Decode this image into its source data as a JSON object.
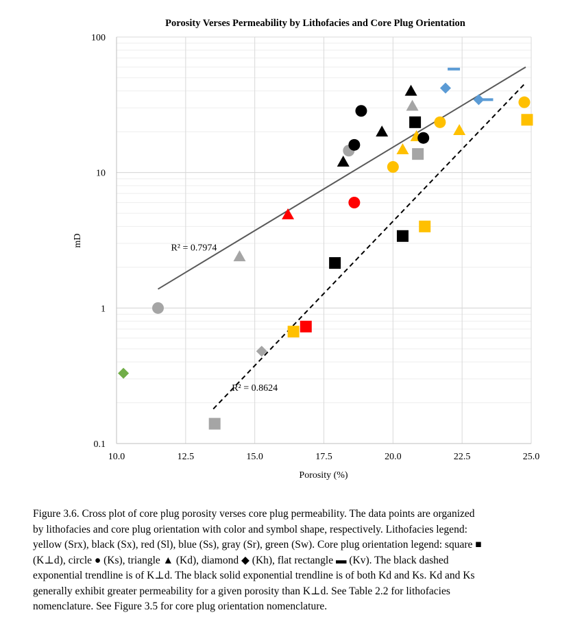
{
  "chart_data": {
    "type": "scatter",
    "title": "Porosity Verses Permeability by Lithofacies and Core Plug Orientation",
    "xlabel": "Porosity (%)",
    "ylabel": "mD",
    "xlim": [
      10.0,
      25.0
    ],
    "ylim": [
      0.1,
      100
    ],
    "y_scale": "log",
    "grid": true,
    "legend": "none",
    "x_ticks": [
      "10.0",
      "12.5",
      "15.0",
      "17.5",
      "20.0",
      "22.5",
      "25.0"
    ],
    "x_tick_values": [
      10.0,
      12.5,
      15.0,
      17.5,
      20.0,
      22.5,
      25.0
    ],
    "y_ticks": [
      "0.1",
      "1",
      "10",
      "100"
    ],
    "y_tick_values": [
      0.1,
      1,
      10,
      100
    ],
    "colors": {
      "yellow": "#ffc000",
      "black": "#000000",
      "red": "#ff0000",
      "blue": "#5b9bd5",
      "gray": "#a5a5a5",
      "green": "#70ad47"
    },
    "points": [
      {
        "x": 10.25,
        "y": 0.33,
        "shape": "diamond",
        "color": "green"
      },
      {
        "x": 11.5,
        "y": 1.0,
        "shape": "circle",
        "color": "gray"
      },
      {
        "x": 13.55,
        "y": 0.14,
        "shape": "square",
        "color": "gray"
      },
      {
        "x": 14.45,
        "y": 2.4,
        "shape": "triangle",
        "color": "gray"
      },
      {
        "x": 15.25,
        "y": 0.48,
        "shape": "diamond",
        "color": "gray"
      },
      {
        "x": 16.2,
        "y": 4.9,
        "shape": "triangle",
        "color": "red"
      },
      {
        "x": 16.4,
        "y": 0.67,
        "shape": "square",
        "color": "yellow"
      },
      {
        "x": 16.85,
        "y": 0.73,
        "shape": "square",
        "color": "red"
      },
      {
        "x": 17.9,
        "y": 2.15,
        "shape": "square",
        "color": "black"
      },
      {
        "x": 18.2,
        "y": 12.0,
        "shape": "triangle",
        "color": "black"
      },
      {
        "x": 18.4,
        "y": 14.5,
        "shape": "circle",
        "color": "gray"
      },
      {
        "x": 18.6,
        "y": 16.0,
        "shape": "circle",
        "color": "black"
      },
      {
        "x": 18.6,
        "y": 6.0,
        "shape": "circle",
        "color": "red"
      },
      {
        "x": 18.85,
        "y": 28.5,
        "shape": "circle",
        "color": "black"
      },
      {
        "x": 19.6,
        "y": 20.0,
        "shape": "triangle",
        "color": "black"
      },
      {
        "x": 20.0,
        "y": 11.0,
        "shape": "circle",
        "color": "yellow"
      },
      {
        "x": 20.35,
        "y": 3.4,
        "shape": "square",
        "color": "black"
      },
      {
        "x": 20.35,
        "y": 14.8,
        "shape": "triangle",
        "color": "yellow"
      },
      {
        "x": 20.65,
        "y": 40.0,
        "shape": "triangle",
        "color": "black"
      },
      {
        "x": 20.7,
        "y": 31.0,
        "shape": "triangle",
        "color": "gray"
      },
      {
        "x": 20.8,
        "y": 23.5,
        "shape": "square",
        "color": "black"
      },
      {
        "x": 20.85,
        "y": 18.5,
        "shape": "triangle",
        "color": "yellow"
      },
      {
        "x": 20.9,
        "y": 13.7,
        "shape": "square",
        "color": "gray"
      },
      {
        "x": 21.1,
        "y": 18.0,
        "shape": "circle",
        "color": "black"
      },
      {
        "x": 21.15,
        "y": 4.0,
        "shape": "square",
        "color": "yellow"
      },
      {
        "x": 21.7,
        "y": 23.5,
        "shape": "circle",
        "color": "yellow"
      },
      {
        "x": 21.9,
        "y": 42.0,
        "shape": "diamond",
        "color": "blue"
      },
      {
        "x": 22.2,
        "y": 58.0,
        "shape": "rect",
        "color": "blue"
      },
      {
        "x": 22.4,
        "y": 20.5,
        "shape": "triangle",
        "color": "yellow"
      },
      {
        "x": 23.1,
        "y": 34.5,
        "shape": "diamond",
        "color": "blue"
      },
      {
        "x": 23.4,
        "y": 34.5,
        "shape": "rect",
        "color": "blue"
      },
      {
        "x": 24.75,
        "y": 33.0,
        "shape": "circle",
        "color": "yellow"
      },
      {
        "x": 24.85,
        "y": 24.5,
        "shape": "square",
        "color": "yellow"
      }
    ],
    "trendlines": [
      {
        "style": "solid",
        "color": "#595959",
        "x": [
          11.5,
          24.8
        ],
        "y": [
          1.38,
          60.0
        ],
        "label": "R² = 0.7974",
        "label_at": [
          12.8,
          2.65
        ]
      },
      {
        "style": "dashed",
        "color": "#000000",
        "x": [
          13.5,
          24.8
        ],
        "y": [
          0.18,
          46.0
        ],
        "label": "R² = 0.8624",
        "label_at": [
          15.0,
          0.245
        ]
      }
    ]
  },
  "caption": {
    "lines": [
      "Figure 3.6.  Cross plot of core plug porosity verses core plug permeability. The data points are organized",
      "by lithofacies and core plug orientation with color and symbol shape, respectively. Lithofacies legend:",
      "yellow (Srx), black (Sx), red (Sl), blue (Ss), gray (Sr), green (Sw). Core plug orientation legend: square ■",
      "(K⊥d), circle ● (Ks), triangle ▲ (Kd), diamond ◆ (Kh), flat rectangle ▬ (Kv). The black dashed",
      "exponential trendline is of K⊥d. The black solid exponential trendline is of both Kd and Ks. Kd and Ks",
      "generally exhibit greater permeability for a given porosity than K⊥d. See Table 2.2 for lithofacies",
      "nomenclature. See Figure 3.5 for core plug orientation nomenclature."
    ]
  }
}
